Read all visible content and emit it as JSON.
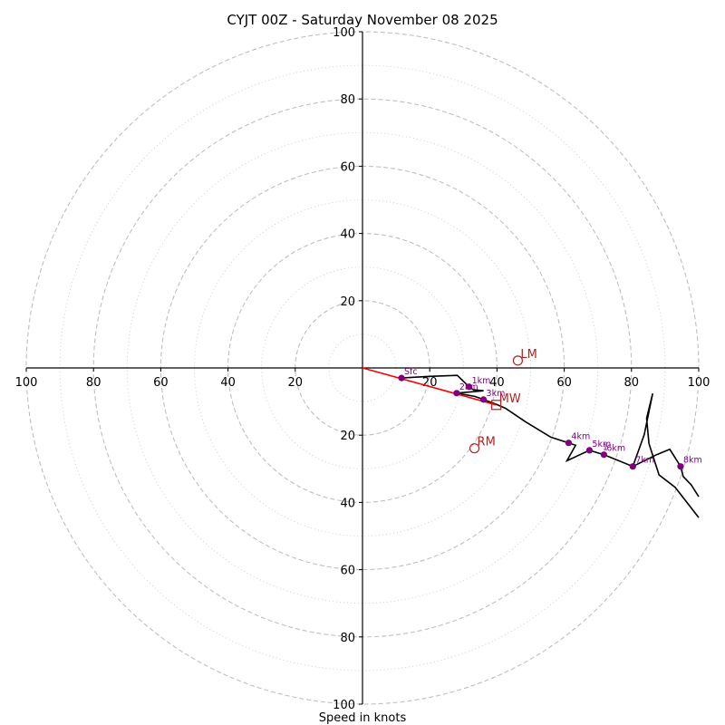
{
  "chart_data": {
    "type": "scatter",
    "subtype": "hodograph",
    "title": "CYJT 00Z - Saturday November 08 2025",
    "xlabel": "Speed in knots",
    "ylabel": "",
    "xlim": [
      -100,
      100
    ],
    "ylim": [
      -100,
      100
    ],
    "units": "knots",
    "rings_major": [
      20,
      40,
      60,
      80,
      100
    ],
    "rings_minor": [
      10,
      30,
      50,
      70,
      90
    ],
    "x_tick_labels": [
      "100",
      "80",
      "60",
      "40",
      "20",
      "20",
      "40",
      "60",
      "80",
      "100"
    ],
    "x_tick_values": [
      -100,
      -80,
      -60,
      -40,
      -20,
      20,
      40,
      60,
      80,
      100
    ],
    "y_tick_labels": [
      "100",
      "80",
      "60",
      "40",
      "20",
      "20",
      "40",
      "60",
      "80",
      "100"
    ],
    "y_tick_values": [
      100,
      80,
      60,
      40,
      20,
      -20,
      -40,
      -60,
      -80,
      -100
    ],
    "trace": [
      [
        11.6,
        -3.0
      ],
      [
        20.0,
        -2.5
      ],
      [
        28.2,
        -2.2
      ],
      [
        31.7,
        -5.6
      ],
      [
        33.0,
        -6.5
      ],
      [
        36.0,
        -6.8
      ],
      [
        28.0,
        -7.5
      ],
      [
        33.5,
        -8.5
      ],
      [
        36.0,
        -9.4
      ],
      [
        39.8,
        -10.8
      ],
      [
        42.5,
        -12.0
      ],
      [
        48.5,
        -16.0
      ],
      [
        56.0,
        -20.6
      ],
      [
        61.3,
        -22.3
      ],
      [
        63.4,
        -23.0
      ],
      [
        60.8,
        -27.6
      ],
      [
        67.5,
        -24.5
      ],
      [
        71.8,
        -25.8
      ],
      [
        80.4,
        -29.3
      ],
      [
        83.8,
        -19.8
      ],
      [
        86.3,
        -7.6
      ],
      [
        84.5,
        -15.0
      ],
      [
        85.2,
        -22.5
      ],
      [
        88.2,
        -31.8
      ],
      [
        93.0,
        -35.5
      ],
      [
        100,
        -44.5
      ]
    ],
    "trace2": [
      [
        80.4,
        -29.3
      ],
      [
        87.5,
        -25.8
      ],
      [
        91.4,
        -24.2
      ],
      [
        94.6,
        -29.3
      ],
      [
        95.4,
        -32.3
      ],
      [
        97.8,
        -34.8
      ],
      [
        100,
        -38.3
      ]
    ],
    "shear_vector": {
      "from": [
        0,
        0
      ],
      "to": [
        39.8,
        -11.0
      ],
      "color": "#ff0000"
    },
    "height_markers": [
      {
        "label": "Sfc",
        "u": 11.6,
        "v": -3.0
      },
      {
        "label": "1km",
        "u": 31.7,
        "v": -5.6
      },
      {
        "label": "2km",
        "u": 28.0,
        "v": -7.5
      },
      {
        "label": "3km",
        "u": 36.0,
        "v": -9.4
      },
      {
        "label": "4km",
        "u": 61.3,
        "v": -22.3
      },
      {
        "label": "5km",
        "u": 67.5,
        "v": -24.5
      },
      {
        "label": "1",
        "u": 70.6,
        "v": -25.5
      },
      {
        "label": "6km",
        "u": 71.8,
        "v": -25.8
      },
      {
        "label": "7km",
        "u": 80.4,
        "v": -29.3
      },
      {
        "label": "8km",
        "u": 94.6,
        "v": -29.3
      }
    ],
    "storm_motion": [
      {
        "label": "LM",
        "u": 46.2,
        "v": 2.2,
        "marker": "circle"
      },
      {
        "label": "RM",
        "u": 33.3,
        "v": -23.9,
        "marker": "circle"
      },
      {
        "label": "MW",
        "u": 39.8,
        "v": -11.0,
        "marker": "square"
      }
    ],
    "colors": {
      "trace": "#000000",
      "markers": "#800080",
      "storm_motion": "#b22222",
      "shear": "#ff0000",
      "grid": "#bfbfbf"
    },
    "grid": true,
    "legend": "none"
  }
}
